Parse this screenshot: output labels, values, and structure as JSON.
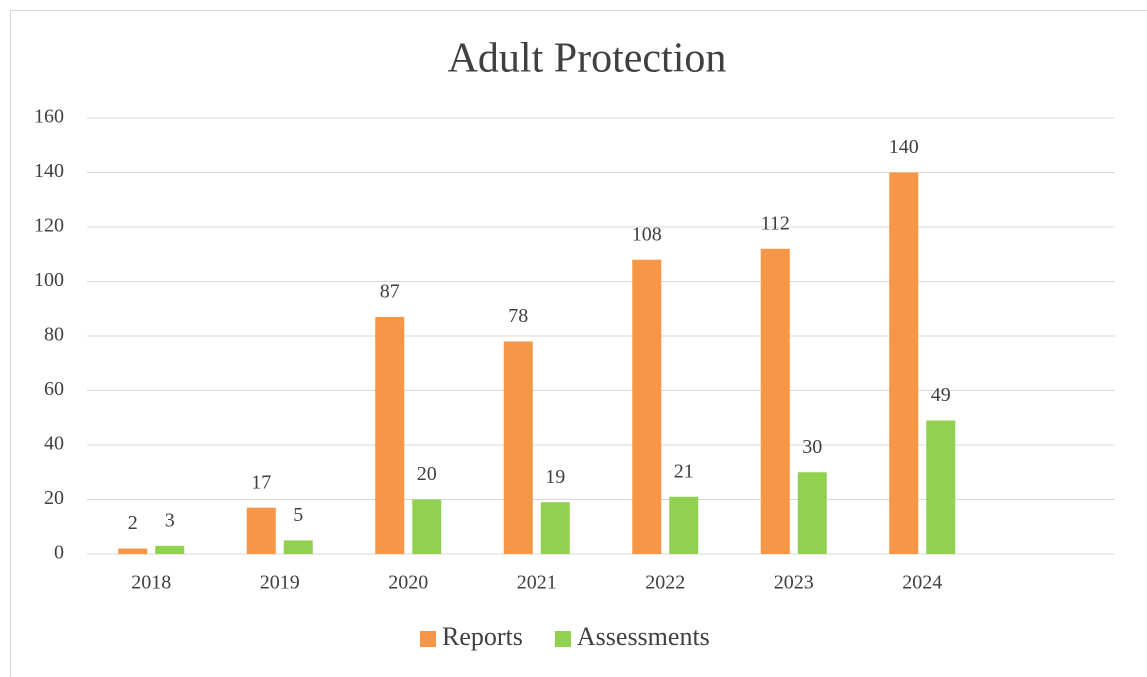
{
  "chart_data": {
    "type": "bar",
    "title": "Adult Protection",
    "categories": [
      "2018",
      "2019",
      "2020",
      "2021",
      "2022",
      "2023",
      "2024",
      null
    ],
    "series": [
      {
        "name": "Reports",
        "color": "#f79646",
        "values": [
          2,
          17,
          87,
          78,
          108,
          112,
          140,
          null
        ]
      },
      {
        "name": "Assessments",
        "color": "#92d050",
        "values": [
          3,
          5,
          20,
          19,
          21,
          30,
          49,
          null
        ]
      }
    ],
    "ylim": [
      0,
      160
    ],
    "yticks": [
      0,
      20,
      40,
      60,
      80,
      100,
      120,
      140,
      160
    ],
    "grid": true,
    "legend": "bottom"
  }
}
